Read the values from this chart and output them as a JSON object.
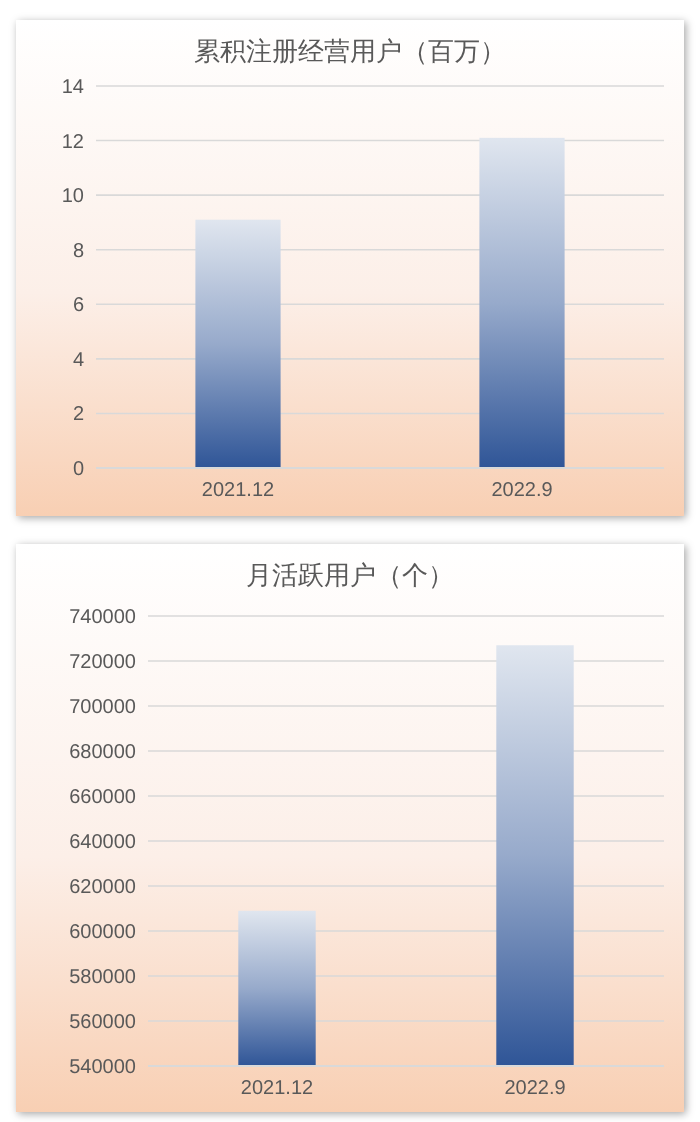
{
  "chart_data": [
    {
      "type": "bar",
      "title": "累积注册经营用户（百万）",
      "categories": [
        "2021.12",
        "2022.9"
      ],
      "series": [
        {
          "color": "#2f5597",
          "values": [
            9.1,
            12.1
          ]
        }
      ],
      "ylim": [
        0,
        14
      ],
      "yticks": [
        0,
        2,
        4,
        6,
        8,
        10,
        12,
        14
      ],
      "grid": "y"
    },
    {
      "type": "bar",
      "title": "月活跃用户（个）",
      "categories": [
        "2021.12",
        "2022.9"
      ],
      "series": [
        {
          "color": "#2f5597",
          "values": [
            609000,
            727000
          ]
        }
      ],
      "ylim": [
        540000,
        740000
      ],
      "yticks": [
        540000,
        560000,
        580000,
        600000,
        620000,
        640000,
        660000,
        680000,
        700000,
        720000,
        740000
      ],
      "grid": "y"
    }
  ]
}
